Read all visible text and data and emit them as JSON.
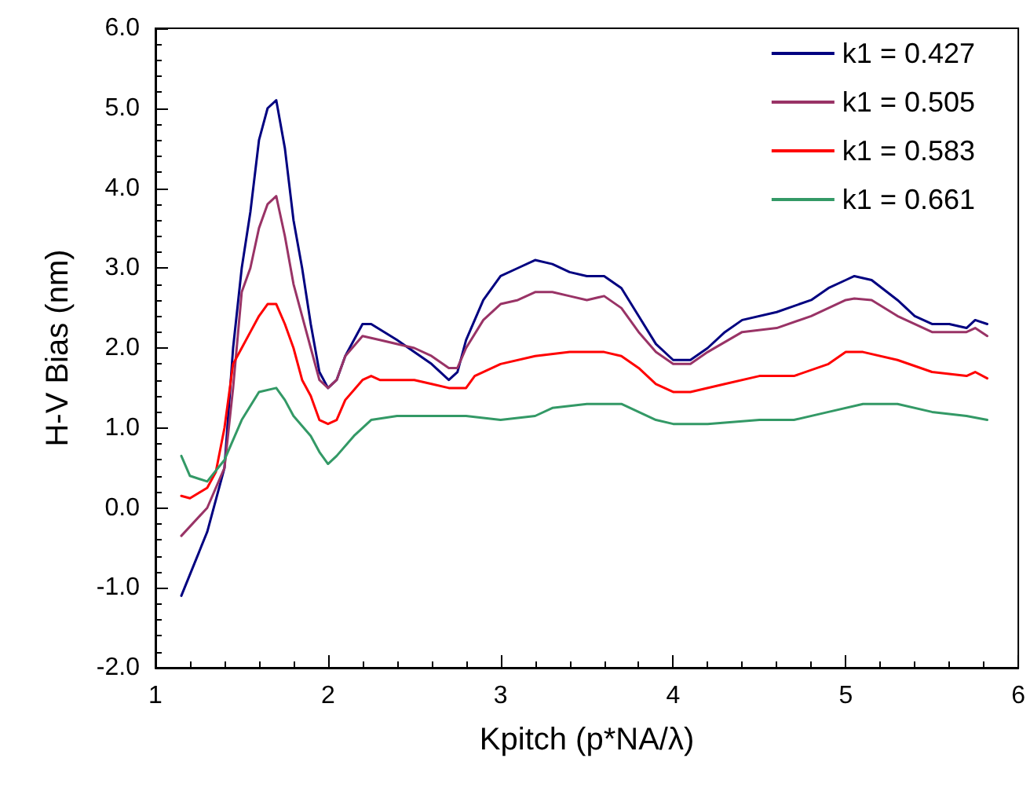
{
  "chart_data": {
    "type": "line",
    "xlabel": "Kpitch (p*NA/λ)",
    "ylabel": "H-V Bias (nm)",
    "xlim": [
      1,
      6
    ],
    "xticks": [
      1,
      2,
      3,
      4,
      5,
      6
    ],
    "ylim": [
      -2,
      6
    ],
    "yticks": [
      {
        "value": -2,
        "label": "-2.0"
      },
      {
        "value": -1,
        "label": "-1.0"
      },
      {
        "value": 0,
        "label": "0.0"
      },
      {
        "value": 1,
        "label": "1.0"
      },
      {
        "value": 2,
        "label": "2.0"
      },
      {
        "value": 3,
        "label": "3.0"
      },
      {
        "value": 4,
        "label": "4.0"
      },
      {
        "value": 5,
        "label": "5.0"
      },
      {
        "value": 6,
        "label": "6.0"
      }
    ],
    "grid": false,
    "legend": "top right",
    "marker": "none",
    "line_style": "solid",
    "series": [
      {
        "name": "k1 = 0.427",
        "color": "#000080",
        "x": [
          1.15,
          1.3,
          1.4,
          1.45,
          1.5,
          1.55,
          1.6,
          1.65,
          1.7,
          1.75,
          1.8,
          1.85,
          1.9,
          1.95,
          2.0,
          2.05,
          2.1,
          2.2,
          2.25,
          2.4,
          2.6,
          2.7,
          2.75,
          2.8,
          2.9,
          3.0,
          3.1,
          3.2,
          3.3,
          3.4,
          3.5,
          3.6,
          3.7,
          3.8,
          3.9,
          4.0,
          4.1,
          4.2,
          4.3,
          4.4,
          4.6,
          4.8,
          4.9,
          5.0,
          5.05,
          5.15,
          5.3,
          5.4,
          5.5,
          5.6,
          5.7,
          5.75,
          5.82
        ],
        "values": [
          -1.1,
          -0.3,
          0.5,
          2.0,
          3.0,
          3.7,
          4.6,
          5.0,
          5.1,
          4.5,
          3.6,
          3.0,
          2.3,
          1.7,
          1.5,
          1.6,
          1.9,
          2.3,
          2.3,
          2.1,
          1.8,
          1.6,
          1.7,
          2.1,
          2.6,
          2.9,
          3.0,
          3.1,
          3.05,
          2.95,
          2.9,
          2.9,
          2.75,
          2.4,
          2.05,
          1.85,
          1.85,
          2.0,
          2.2,
          2.35,
          2.45,
          2.6,
          2.75,
          2.85,
          2.9,
          2.85,
          2.6,
          2.4,
          2.3,
          2.3,
          2.25,
          2.35,
          2.3
        ]
      },
      {
        "name": "k1 = 0.505",
        "color": "#993366",
        "x": [
          1.15,
          1.3,
          1.4,
          1.45,
          1.5,
          1.55,
          1.6,
          1.65,
          1.7,
          1.75,
          1.8,
          1.85,
          1.9,
          1.95,
          2.0,
          2.05,
          2.1,
          2.2,
          2.3,
          2.5,
          2.6,
          2.7,
          2.75,
          2.8,
          2.9,
          3.0,
          3.1,
          3.2,
          3.3,
          3.4,
          3.5,
          3.6,
          3.7,
          3.8,
          3.9,
          4.0,
          4.1,
          4.2,
          4.4,
          4.6,
          4.8,
          5.0,
          5.05,
          5.15,
          5.3,
          5.5,
          5.7,
          5.75,
          5.82
        ],
        "values": [
          -0.35,
          0.0,
          0.5,
          1.5,
          2.7,
          3.0,
          3.5,
          3.8,
          3.9,
          3.4,
          2.8,
          2.4,
          2.0,
          1.6,
          1.5,
          1.6,
          1.9,
          2.15,
          2.1,
          2.0,
          1.9,
          1.75,
          1.75,
          2.0,
          2.35,
          2.55,
          2.6,
          2.7,
          2.7,
          2.65,
          2.6,
          2.65,
          2.5,
          2.2,
          1.95,
          1.8,
          1.8,
          1.95,
          2.2,
          2.25,
          2.4,
          2.6,
          2.62,
          2.6,
          2.4,
          2.2,
          2.2,
          2.25,
          2.15
        ]
      },
      {
        "name": "k1 = 0.583",
        "color": "#ff0000",
        "x": [
          1.15,
          1.2,
          1.3,
          1.35,
          1.4,
          1.45,
          1.5,
          1.55,
          1.6,
          1.65,
          1.7,
          1.75,
          1.8,
          1.85,
          1.9,
          1.95,
          2.0,
          2.05,
          2.1,
          2.2,
          2.25,
          2.3,
          2.5,
          2.6,
          2.7,
          2.8,
          2.85,
          3.0,
          3.2,
          3.4,
          3.6,
          3.7,
          3.8,
          3.9,
          4.0,
          4.1,
          4.3,
          4.5,
          4.7,
          4.9,
          5.0,
          5.1,
          5.3,
          5.5,
          5.7,
          5.75,
          5.82
        ],
        "values": [
          0.15,
          0.12,
          0.25,
          0.45,
          1.0,
          1.8,
          2.0,
          2.2,
          2.4,
          2.55,
          2.55,
          2.3,
          2.0,
          1.6,
          1.4,
          1.1,
          1.05,
          1.1,
          1.35,
          1.6,
          1.65,
          1.6,
          1.6,
          1.55,
          1.5,
          1.5,
          1.65,
          1.8,
          1.9,
          1.95,
          1.95,
          1.9,
          1.75,
          1.55,
          1.45,
          1.45,
          1.55,
          1.65,
          1.65,
          1.8,
          1.95,
          1.95,
          1.85,
          1.7,
          1.65,
          1.7,
          1.62
        ]
      },
      {
        "name": "k1 = 0.661",
        "color": "#339966",
        "x": [
          1.15,
          1.2,
          1.3,
          1.4,
          1.5,
          1.6,
          1.7,
          1.75,
          1.8,
          1.9,
          1.95,
          2.0,
          2.05,
          2.15,
          2.25,
          2.4,
          2.6,
          2.8,
          3.0,
          3.2,
          3.3,
          3.5,
          3.7,
          3.8,
          3.9,
          4.0,
          4.2,
          4.5,
          4.7,
          4.9,
          5.1,
          5.3,
          5.5,
          5.7,
          5.82
        ],
        "values": [
          0.65,
          0.4,
          0.33,
          0.6,
          1.1,
          1.45,
          1.5,
          1.35,
          1.15,
          0.9,
          0.7,
          0.55,
          0.65,
          0.9,
          1.1,
          1.15,
          1.15,
          1.15,
          1.1,
          1.15,
          1.25,
          1.3,
          1.3,
          1.2,
          1.1,
          1.05,
          1.05,
          1.1,
          1.1,
          1.2,
          1.3,
          1.3,
          1.2,
          1.15,
          1.1
        ]
      }
    ]
  }
}
